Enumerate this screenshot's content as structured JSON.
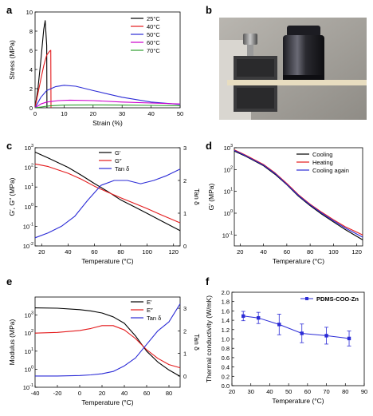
{
  "chart_data": [
    {
      "panel": "a",
      "type": "line",
      "xlabel": "Strain (%)",
      "ylabel": "Stress (MPa)",
      "xlim": [
        0,
        50
      ],
      "ylim": [
        0,
        10
      ],
      "xticks": [
        0,
        10,
        20,
        30,
        40,
        50
      ],
      "yticks": [
        0,
        2,
        4,
        6,
        8,
        10
      ],
      "legend_position": "top-right",
      "series": [
        {
          "name": "25°C",
          "color": "#000000",
          "x": [
            0,
            1,
            2,
            3,
            3.5,
            4,
            4.1
          ],
          "y": [
            0,
            2.0,
            5.0,
            8.2,
            9.1,
            6.5,
            0
          ]
        },
        {
          "name": "40°C",
          "color": "#e41a1c",
          "x": [
            0,
            1,
            2,
            3,
            4,
            5,
            5.4,
            5.5
          ],
          "y": [
            0,
            1.5,
            3.0,
            4.4,
            5.5,
            5.9,
            6.0,
            0
          ]
        },
        {
          "name": "50°C",
          "color": "#2b2bd6",
          "x": [
            0,
            2,
            4,
            7,
            10,
            14,
            20,
            30,
            40,
            50
          ],
          "y": [
            0,
            1.1,
            1.8,
            2.2,
            2.35,
            2.25,
            1.8,
            1.1,
            0.6,
            0.35
          ]
        },
        {
          "name": "60°C",
          "color": "#cc00cc",
          "x": [
            0,
            2,
            4,
            8,
            12,
            20,
            30,
            40,
            50
          ],
          "y": [
            0,
            0.4,
            0.6,
            0.75,
            0.8,
            0.75,
            0.6,
            0.5,
            0.4
          ]
        },
        {
          "name": "70°C",
          "color": "#2e9e2e",
          "x": [
            0,
            5,
            10,
            20,
            30,
            40,
            50
          ],
          "y": [
            0,
            0.2,
            0.28,
            0.3,
            0.28,
            0.25,
            0.22
          ]
        }
      ]
    },
    {
      "panel": "c",
      "type": "line",
      "xlabel": "Temperature (°C)",
      "ylabel": "G′, G″ (MPa)",
      "y2label": "Tan δ",
      "xlim": [
        15,
        125
      ],
      "ylim_log": [
        -2,
        3
      ],
      "y2lim": [
        0,
        3
      ],
      "xticks": [
        20,
        40,
        60,
        80,
        100,
        120
      ],
      "yticks_exp": [
        -2,
        -1,
        0,
        1,
        2,
        3
      ],
      "y2ticks": [
        0,
        1,
        2,
        3
      ],
      "legend_position": "top-center",
      "series": [
        {
          "name": "G′",
          "color": "#000000",
          "axis": "left",
          "x": [
            15,
            25,
            40,
            50,
            60,
            70,
            80,
            90,
            100,
            110,
            125
          ],
          "y": [
            600,
            300,
            100,
            40,
            15,
            6,
            2.2,
            1.0,
            0.45,
            0.2,
            0.06
          ]
        },
        {
          "name": "G″",
          "color": "#e41a1c",
          "axis": "left",
          "x": [
            15,
            25,
            40,
            50,
            60,
            70,
            80,
            90,
            100,
            110,
            125
          ],
          "y": [
            150,
            110,
            50,
            25,
            11,
            5.5,
            2.8,
            1.5,
            0.8,
            0.4,
            0.15
          ]
        },
        {
          "name": "Tan δ",
          "color": "#2b2bd6",
          "axis": "right",
          "x": [
            15,
            25,
            35,
            45,
            55,
            65,
            75,
            85,
            95,
            105,
            115,
            125
          ],
          "y": [
            0.25,
            0.4,
            0.6,
            0.9,
            1.4,
            1.85,
            2.0,
            2.0,
            1.9,
            2.0,
            2.15,
            2.35
          ]
        }
      ]
    },
    {
      "panel": "d",
      "type": "line",
      "xlabel": "Temperature (°C)",
      "ylabel": "G′ (MPa)",
      "xlim": [
        15,
        125
      ],
      "ylim_log": [
        -1.5,
        3
      ],
      "xticks": [
        20,
        40,
        60,
        80,
        100,
        120
      ],
      "yticks_exp": [
        -1,
        0,
        1,
        2,
        3
      ],
      "legend_position": "top-right",
      "series": [
        {
          "name": "Cooling",
          "color": "#000000",
          "x": [
            15,
            25,
            40,
            50,
            60,
            70,
            80,
            90,
            100,
            110,
            125
          ],
          "y": [
            700,
            400,
            150,
            60,
            20,
            6,
            2.2,
            0.9,
            0.4,
            0.18,
            0.06
          ]
        },
        {
          "name": "Heating",
          "color": "#e41a1c",
          "x": [
            15,
            25,
            40,
            50,
            60,
            70,
            80,
            90,
            100,
            110,
            125
          ],
          "y": [
            800,
            450,
            170,
            70,
            23,
            7,
            2.6,
            1.1,
            0.5,
            0.24,
            0.1
          ]
        },
        {
          "name": "Cooling again",
          "color": "#2b2bd6",
          "x": [
            15,
            25,
            40,
            50,
            60,
            70,
            80,
            90,
            100,
            110,
            125
          ],
          "y": [
            750,
            420,
            160,
            65,
            21,
            6.5,
            2.4,
            1.0,
            0.45,
            0.21,
            0.08
          ]
        }
      ]
    },
    {
      "panel": "e",
      "type": "line",
      "xlabel": "Temperature (°C)",
      "ylabel": "Modulus (MPa)",
      "y2label": "Tan δ",
      "xlim": [
        -40,
        90
      ],
      "ylim_log": [
        -1,
        4
      ],
      "y2lim": [
        -0.5,
        3.5
      ],
      "xticks": [
        -40,
        -20,
        0,
        20,
        40,
        60,
        80
      ],
      "yticks_exp": [
        -1,
        0,
        1,
        2,
        3
      ],
      "y2ticks": [
        0,
        1,
        2,
        3
      ],
      "legend_position": "top-right",
      "series": [
        {
          "name": "E′",
          "color": "#000000",
          "axis": "left",
          "x": [
            -40,
            -20,
            0,
            10,
            20,
            30,
            40,
            50,
            60,
            70,
            80,
            90
          ],
          "y": [
            2500,
            2400,
            2000,
            1700,
            1300,
            800,
            350,
            70,
            10,
            2.5,
            0.9,
            0.4
          ]
        },
        {
          "name": "E″",
          "color": "#e41a1c",
          "axis": "left",
          "x": [
            -40,
            -20,
            0,
            10,
            20,
            30,
            40,
            50,
            60,
            70,
            80,
            90
          ],
          "y": [
            100,
            110,
            140,
            180,
            260,
            260,
            150,
            50,
            12,
            4,
            1.8,
            1.2
          ]
        },
        {
          "name": "Tan δ",
          "color": "#2b2bd6",
          "axis": "right",
          "x": [
            -40,
            -20,
            0,
            10,
            20,
            30,
            40,
            50,
            60,
            70,
            80,
            90
          ],
          "y": [
            0.0,
            0.0,
            0.02,
            0.05,
            0.1,
            0.2,
            0.45,
            0.8,
            1.4,
            2.0,
            2.4,
            3.2
          ]
        }
      ]
    },
    {
      "panel": "f",
      "type": "scatter",
      "xlabel": "Temperature (°C)",
      "ylabel": "Thermal conductivity (W/mK)",
      "xlim": [
        20,
        90
      ],
      "ylim": [
        0,
        2.0
      ],
      "xticks": [
        20,
        30,
        40,
        50,
        60,
        70,
        80,
        90
      ],
      "yticks": [
        0.0,
        0.2,
        0.4,
        0.6,
        0.8,
        1.0,
        1.2,
        1.4,
        1.6,
        1.8,
        2.0
      ],
      "legend_position": "top-right",
      "series": [
        {
          "name": "PDMS-COO-Zn",
          "color": "#2b2bd6",
          "x": [
            26,
            34,
            45,
            57,
            70,
            82
          ],
          "y": [
            1.49,
            1.45,
            1.31,
            1.12,
            1.07,
            1.01
          ],
          "error": [
            0.1,
            0.12,
            0.22,
            0.2,
            0.18,
            0.16
          ]
        }
      ]
    }
  ],
  "panel_labels": {
    "a": "a",
    "b": "b",
    "c": "c",
    "d": "d",
    "e": "e",
    "f": "f"
  },
  "photo": {
    "description_icon": "photo-weights-clamp-icon"
  }
}
